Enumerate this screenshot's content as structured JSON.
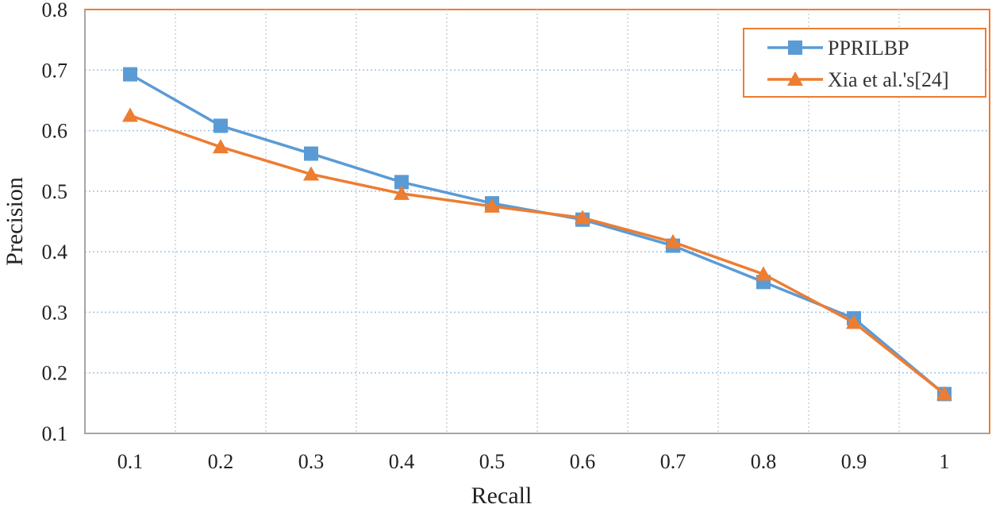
{
  "chart_data": {
    "type": "line",
    "title": "",
    "xlabel": "Recall",
    "ylabel": "Precision",
    "categories": [
      "0.1",
      "0.2",
      "0.3",
      "0.4",
      "0.5",
      "0.6",
      "0.7",
      "0.8",
      "0.9",
      "1"
    ],
    "ylim": [
      0.1,
      0.8
    ],
    "yticks": [
      "0.1",
      "0.2",
      "0.3",
      "0.4",
      "0.5",
      "0.6",
      "0.7",
      "0.8"
    ],
    "grid": true,
    "legend_position": "top-right",
    "series": [
      {
        "name": "PPRILBP",
        "marker": "square",
        "color": "#5b9bd5",
        "marker_fill": "#5b9bd5",
        "values": [
          0.693,
          0.608,
          0.562,
          0.515,
          0.48,
          0.453,
          0.41,
          0.35,
          0.29,
          0.165
        ]
      },
      {
        "name": "Xia et al.'s[24]",
        "marker": "triangle",
        "color": "#ed7d31",
        "marker_fill": "#ed7d31",
        "values": [
          0.625,
          0.573,
          0.528,
          0.496,
          0.475,
          0.456,
          0.416,
          0.363,
          0.283,
          0.165
        ]
      }
    ],
    "frame_color": "#ed7d31",
    "grid_color": "#9dc3e6"
  }
}
